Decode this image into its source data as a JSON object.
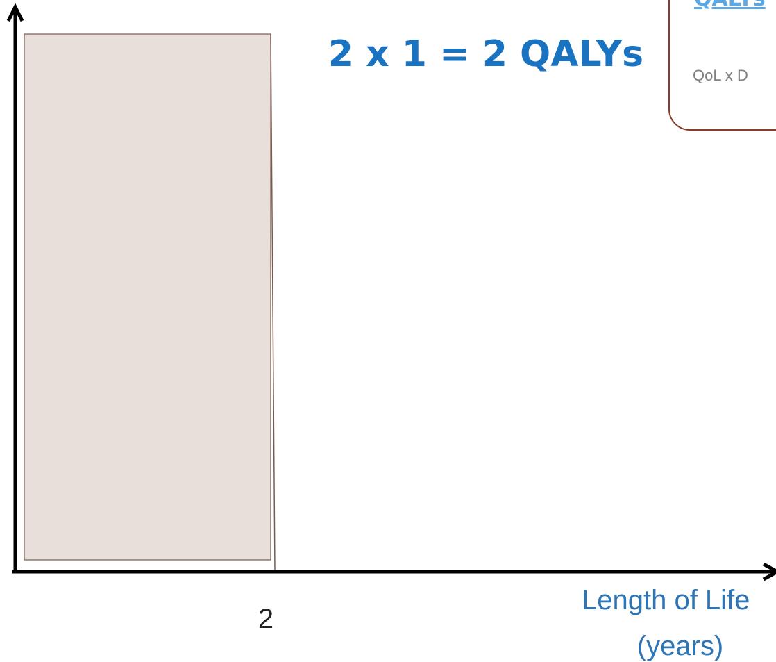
{
  "header": {
    "link": "QALYs"
  },
  "box": {
    "formula": "QoL x D"
  },
  "equation": "2 x 1 = 2 QALYs",
  "x_axis": {
    "tick": "2",
    "label_line1": "Length of Life",
    "label_line2": "(years)"
  }
}
